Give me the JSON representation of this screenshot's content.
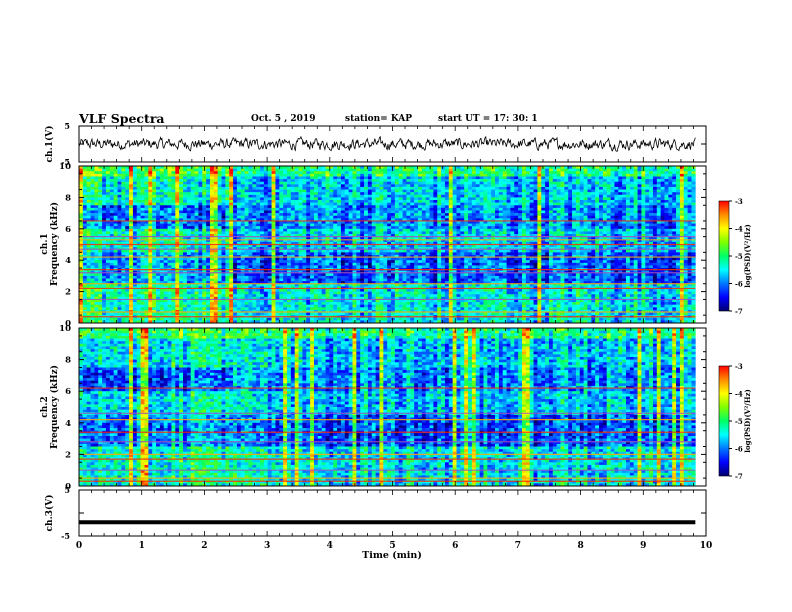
{
  "header": {
    "title": "VLF Spectra",
    "date": "Oct. 5 , 2019",
    "station": "station= KAP",
    "start": "start UT = 17: 30: 1"
  },
  "colors": {
    "colormap": [
      "#00006e",
      "#0000ff",
      "#0078ff",
      "#00ffff",
      "#00ff66",
      "#7fff00",
      "#ffff00",
      "#ff8c00",
      "#ff0000",
      "#ffffff"
    ],
    "waveform": "#000000",
    "axes": "#000000"
  },
  "chart_data": [
    {
      "type": "line",
      "panel": "ch1-waveform",
      "ylabel": "ch.1(V)",
      "ylim": [
        -5,
        5
      ],
      "yticks": [
        5,
        -5
      ],
      "xlim": [
        0,
        10
      ],
      "series": [
        {
          "values_note_range": [
            -2,
            2
          ]
        }
      ],
      "amplitude_range_V": [
        -2,
        2
      ]
    },
    {
      "type": "heatmap",
      "panel": "ch1-spectrogram",
      "ylabel": "ch.1\nFrequency (kHz)",
      "ylabel_lines": [
        "ch.1",
        "Frequency (kHz)"
      ],
      "ylim": [
        0,
        10
      ],
      "yticks": [
        0,
        2,
        4,
        6,
        8,
        10
      ],
      "xlim": [
        0,
        10
      ],
      "data_end_min": 9.83,
      "colorbar": {
        "label": "log(PSD)(V²/Hz)",
        "range": [
          -7,
          -3
        ],
        "ticks": [
          -3,
          -4,
          -5,
          -6,
          -7
        ]
      },
      "emission_lines_kHz": [
        0.4,
        0.7,
        1.5,
        2.2,
        2.5,
        3.2,
        3.4,
        4.2,
        4.7,
        5.0,
        5.3,
        5.5,
        6.5
      ],
      "background_logPSD": -5.2
    },
    {
      "type": "heatmap",
      "panel": "ch2-spectrogram",
      "ylabel": "ch.2\nFrequency (kHz)",
      "ylabel_lines": [
        "ch.2",
        "Frequency (kHz)"
      ],
      "ylim": [
        0,
        10
      ],
      "yticks": [
        0,
        2,
        4,
        6,
        8,
        10
      ],
      "xlim": [
        0,
        10
      ],
      "data_end_min": 9.83,
      "colorbar": {
        "label": "log(PSD)(V²/Hz)",
        "range": [
          -7,
          -3
        ],
        "ticks": [
          -3,
          -4,
          -5,
          -6,
          -7
        ]
      },
      "emission_lines_kHz": [
        0.3,
        0.5,
        1.0,
        1.7,
        2.0,
        2.8,
        3.4,
        4.2,
        4.6,
        6.2
      ],
      "background_logPSD": -5.6
    },
    {
      "type": "line",
      "panel": "ch3-waveform",
      "ylabel": "ch.3(V)",
      "ylim": [
        -5,
        5
      ],
      "yticks": [
        5,
        -5
      ],
      "xlim": [
        0,
        10
      ],
      "xlabel": "Time (min)",
      "xticks": [
        0,
        1,
        2,
        3,
        4,
        5,
        6,
        7,
        8,
        9,
        10
      ],
      "series": [
        {
          "constant_value": -2
        }
      ],
      "constant_value_V": -2
    }
  ]
}
